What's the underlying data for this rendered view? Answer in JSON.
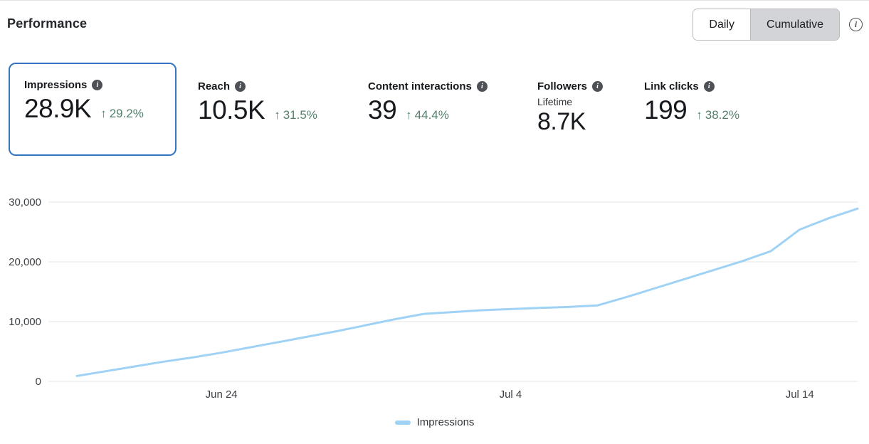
{
  "header": {
    "title": "Performance",
    "toggle": {
      "daily_label": "Daily",
      "cumulative_label": "Cumulative",
      "selected": "Cumulative"
    }
  },
  "icons": {
    "info_filled": "i",
    "info_outline": "i",
    "up_arrow": "↑"
  },
  "metrics": [
    {
      "id": "impressions",
      "label": "Impressions",
      "value": "28.9K",
      "arrow": "↑",
      "change": "29.2%",
      "selected": true
    },
    {
      "id": "reach",
      "label": "Reach",
      "value": "10.5K",
      "arrow": "↑",
      "change": "31.5%",
      "selected": false
    },
    {
      "id": "content-interactions",
      "label": "Content interactions",
      "value": "39",
      "arrow": "↑",
      "change": "44.4%",
      "selected": false
    },
    {
      "id": "followers",
      "label": "Followers",
      "sublabel": "Lifetime",
      "value": "8.7K",
      "selected": false
    },
    {
      "id": "link-clicks",
      "label": "Link clicks",
      "value": "199",
      "arrow": "↑",
      "change": "38.2%",
      "selected": false
    }
  ],
  "chart_data": {
    "type": "line",
    "title": "",
    "xlabel": "",
    "ylabel": "",
    "x": [
      "Jun 19",
      "Jun 20",
      "Jun 21",
      "Jun 22",
      "Jun 23",
      "Jun 24",
      "Jun 25",
      "Jun 26",
      "Jun 27",
      "Jun 28",
      "Jun 29",
      "Jun 30",
      "Jul 1",
      "Jul 2",
      "Jul 3",
      "Jul 4",
      "Jul 5",
      "Jul 6",
      "Jul 7",
      "Jul 8",
      "Jul 9",
      "Jul 10",
      "Jul 11",
      "Jul 12",
      "Jul 13",
      "Jul 14",
      "Jul 15",
      "Jul 16"
    ],
    "series": [
      {
        "name": "Impressions",
        "color": "#9fd2f4",
        "values": [
          900,
          1700,
          2500,
          3300,
          4000,
          4800,
          5700,
          6600,
          7500,
          8400,
          9400,
          10400,
          11300,
          11600,
          11900,
          12100,
          12300,
          12450,
          12700,
          14100,
          15600,
          17100,
          18600,
          20100,
          21800,
          25400,
          27300,
          28900
        ]
      }
    ],
    "ylim": [
      0,
      30000
    ],
    "yticks": [
      {
        "value": 0,
        "label": "0"
      },
      {
        "value": 10000,
        "label": "10,000"
      },
      {
        "value": 20000,
        "label": "20,000"
      },
      {
        "value": 30000,
        "label": "30,000"
      }
    ],
    "xticks": [
      {
        "index": 5,
        "label": "Jun 24"
      },
      {
        "index": 15,
        "label": "Jul 4"
      },
      {
        "index": 25,
        "label": "Jul 14"
      }
    ],
    "grid": true,
    "legend_position": "bottom"
  },
  "legend": {
    "items": [
      {
        "label": "Impressions",
        "color": "#9fd2f4"
      }
    ]
  },
  "colors": {
    "accent_blue": "#3474c0",
    "positive_green": "#53806a",
    "line_blue": "#9fd2f4",
    "grid": "#e5e5e7",
    "toggle_selected_bg": "#d3d4d8"
  }
}
